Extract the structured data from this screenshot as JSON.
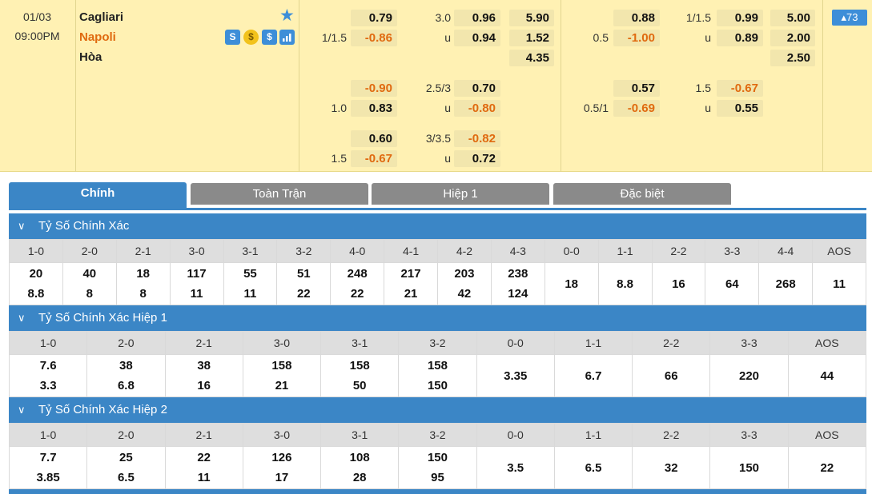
{
  "match": {
    "date": "01/03",
    "time": "09:00PM",
    "home": "Cagliari",
    "away": "Napoli",
    "draw": "Hòa",
    "more": "73",
    "icons": [
      "stats-s-icon",
      "coin-icon",
      "dollar-icon",
      "bar-chart-icon"
    ]
  },
  "odds": {
    "ft_hdp": [
      {
        "line": "",
        "home": "0.79",
        "away": "-0.86",
        "away_line": "1/1.5"
      },
      {
        "line": "",
        "home": "-0.90",
        "away": "0.83",
        "away_line": "1.0"
      },
      {
        "line": "",
        "home": "0.60",
        "away": "-0.67",
        "away_line": "1.5"
      }
    ],
    "ft_ou": [
      {
        "line": "3.0",
        "over": "0.96",
        "u": "u",
        "under": "0.94"
      },
      {
        "line": "2.5/3",
        "over": "0.70",
        "u": "u",
        "under": "-0.80"
      },
      {
        "line": "3/3.5",
        "over": "-0.82",
        "u": "u",
        "under": "0.72"
      }
    ],
    "ft_1x2": [
      "5.90",
      "1.52",
      "4.35"
    ],
    "h1_hdp": [
      {
        "home": "0.88",
        "away_line": "0.5",
        "away": "-1.00"
      },
      {
        "home": "0.57",
        "away_line": "0.5/1",
        "away": "-0.69"
      }
    ],
    "h1_ou": [
      {
        "line": "1/1.5",
        "over": "0.99",
        "u": "u",
        "under": "0.89"
      },
      {
        "line": "1.5",
        "over": "-0.67",
        "u": "u",
        "under": "0.55"
      }
    ],
    "h1_1x2": [
      "5.00",
      "2.00",
      "2.50"
    ]
  },
  "tabs": [
    "Chính",
    "Toàn Trận",
    "Hiệp 1",
    "Đặc biệt"
  ],
  "sections": [
    {
      "title": "Tỷ Số Chính Xác",
      "headers": [
        "1-0",
        "2-0",
        "2-1",
        "3-0",
        "3-1",
        "3-2",
        "4-0",
        "4-1",
        "4-2",
        "4-3",
        "0-0",
        "1-1",
        "2-2",
        "3-3",
        "4-4",
        "AOS"
      ],
      "top": [
        "20",
        "40",
        "18",
        "117",
        "55",
        "51",
        "248",
        "217",
        "203",
        "238"
      ],
      "bottom": [
        "8.8",
        "8",
        "8",
        "11",
        "11",
        "22",
        "22",
        "21",
        "42",
        "124"
      ],
      "single": [
        "18",
        "8.8",
        "16",
        "64",
        "268",
        "11"
      ]
    },
    {
      "title": "Tỷ Số Chính Xác Hiệp 1",
      "headers": [
        "1-0",
        "2-0",
        "2-1",
        "3-0",
        "3-1",
        "3-2",
        "0-0",
        "1-1",
        "2-2",
        "3-3",
        "AOS"
      ],
      "top": [
        "7.6",
        "38",
        "38",
        "158",
        "158",
        "158"
      ],
      "bottom": [
        "3.3",
        "6.8",
        "16",
        "21",
        "50",
        "150"
      ],
      "single": [
        "3.35",
        "6.7",
        "66",
        "220",
        "44"
      ]
    },
    {
      "title": "Tỷ Số Chính Xác Hiệp 2",
      "headers": [
        "1-0",
        "2-0",
        "2-1",
        "3-0",
        "3-1",
        "3-2",
        "0-0",
        "1-1",
        "2-2",
        "3-3",
        "AOS"
      ],
      "top": [
        "7.7",
        "25",
        "22",
        "126",
        "108",
        "150"
      ],
      "bottom": [
        "3.85",
        "6.5",
        "11",
        "17",
        "28",
        "95"
      ],
      "single": [
        "3.5",
        "6.5",
        "32",
        "150",
        "22"
      ]
    }
  ],
  "colors": {
    "accent": "#3b86c6",
    "negative": "#e06a10",
    "row_bg": "#fff1b3",
    "tab_inactive": "#8a8a8a"
  }
}
